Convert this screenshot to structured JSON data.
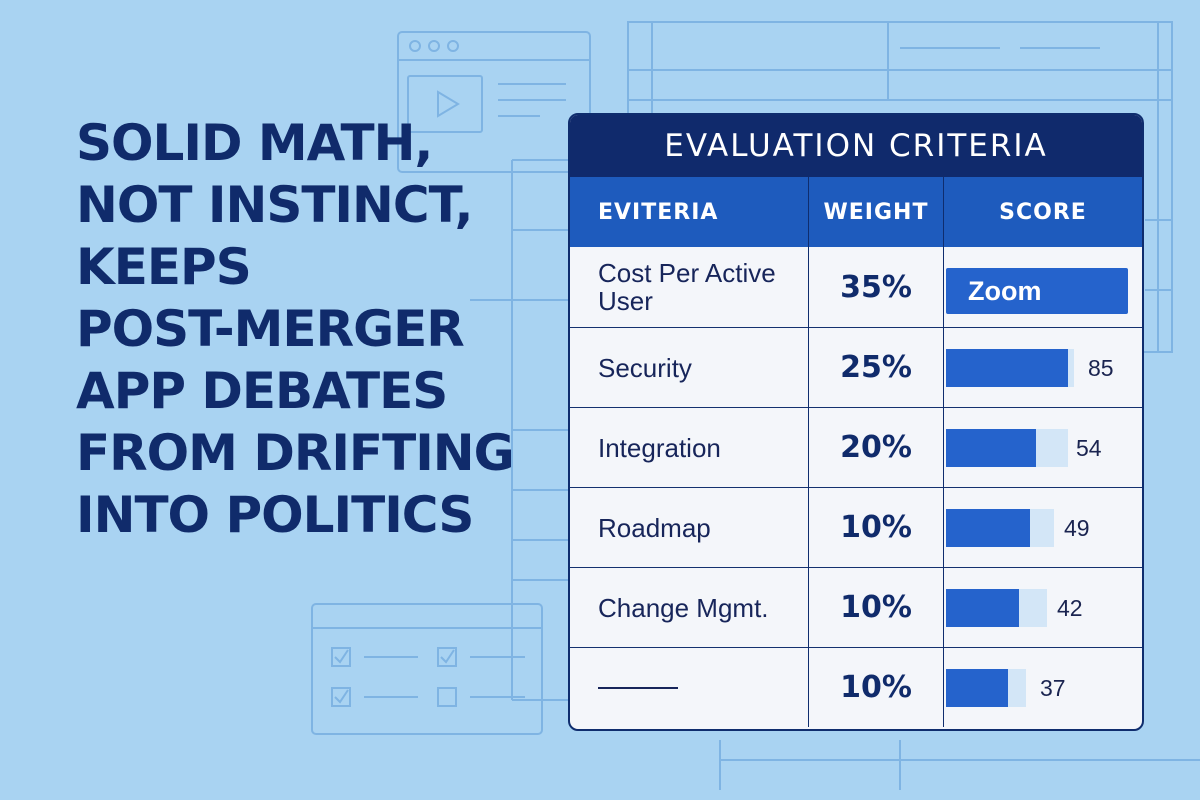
{
  "headline": {
    "lines": [
      "SOLID MATH,",
      "NOT INSTINCT,",
      "KEEPS",
      "POST-MERGER",
      "APP DEBATES",
      "FROM DRIFTING",
      "INTO POLITICS"
    ]
  },
  "card": {
    "title": "EVALUATION CRITERIA",
    "columns": [
      "EVITERIA",
      "WEIGHT",
      "SCORE"
    ],
    "rows": [
      {
        "name": "Cost Per Active User",
        "weight": "35%",
        "score_label": "Zoom"
      },
      {
        "name": "Security",
        "weight": "25%",
        "score": "85",
        "fill": 0.95
      },
      {
        "name": "Integration",
        "weight": "20%",
        "score": "54",
        "fill": 0.74
      },
      {
        "name": "Roadmap",
        "weight": "10%",
        "score": "49",
        "fill": 0.78
      },
      {
        "name": "Change Mgmt.",
        "weight": "10%",
        "score": "42",
        "fill": 0.72
      },
      {
        "name": "",
        "weight": "10%",
        "score": "37",
        "fill": 0.77
      }
    ]
  },
  "colors": {
    "background": "#a9d3f2",
    "navy": "#102a6c",
    "accent_blue": "#1e5bbd",
    "bar_blue": "#2563cc",
    "bar_track": "#d3e6f7"
  },
  "icons": [
    "browser-window-icon",
    "video-play-icon",
    "checklist-icon",
    "checkbox-icon"
  ]
}
